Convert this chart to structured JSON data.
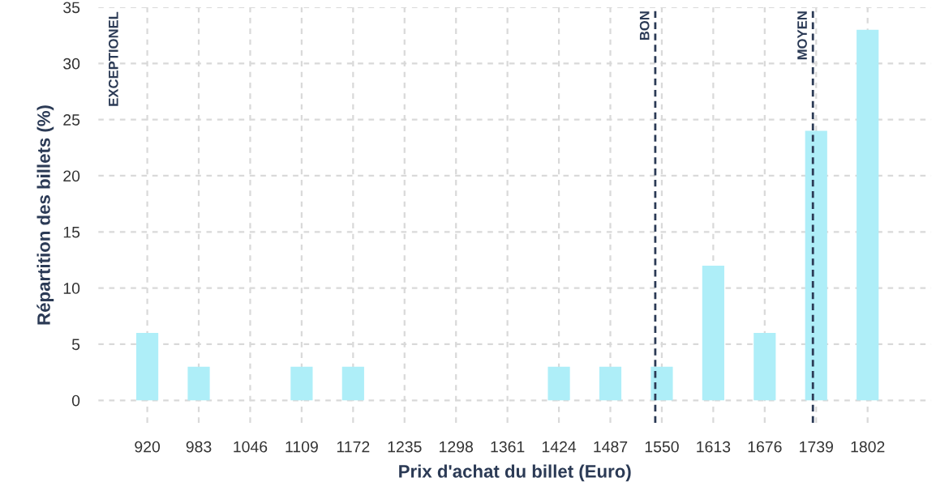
{
  "chart_data": {
    "type": "bar",
    "xlabel": "Prix d'achat du billet (Euro)",
    "ylabel": "Répartition des billets (%)",
    "x": [
      920,
      983,
      1046,
      1109,
      1172,
      1235,
      1298,
      1361,
      1424,
      1487,
      1550,
      1613,
      1676,
      1739,
      1802
    ],
    "values": [
      6,
      3,
      0,
      3,
      3,
      0,
      0,
      0,
      3,
      3,
      3,
      12,
      6,
      24,
      33
    ],
    "color": "#aeeef8",
    "xlim": [
      860,
      1880
    ],
    "xticks": [
      920,
      983,
      1046,
      1109,
      1172,
      1235,
      1298,
      1361,
      1424,
      1487,
      1550,
      1613,
      1676,
      1739,
      1802
    ],
    "ylim": [
      -2,
      35
    ],
    "yticks": [
      0,
      5,
      10,
      15,
      20,
      25,
      30,
      35
    ],
    "grid": true,
    "annotations": [
      "EXCEPTIONEL"
    ],
    "ref_lines": [
      {
        "axis": "x",
        "value": 1542,
        "label": "BON",
        "line_style": "dashed",
        "color": "#2b3a55"
      },
      {
        "axis": "x",
        "value": 1735,
        "label": "MOYEN",
        "line_style": "dashed",
        "color": "#2b3a55"
      }
    ]
  }
}
